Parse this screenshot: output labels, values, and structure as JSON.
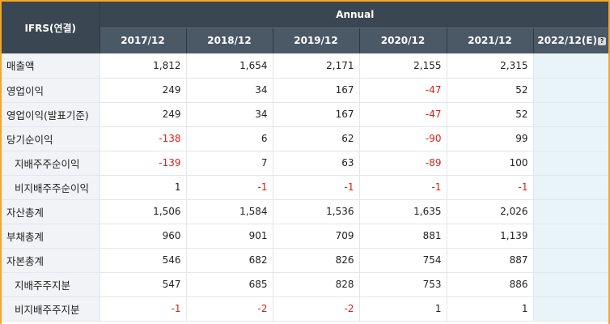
{
  "header": {
    "corner_label": "IFRS(연결)",
    "group_label": "Annual",
    "years": [
      "2017/12",
      "2018/12",
      "2019/12",
      "2020/12",
      "2021/12"
    ],
    "estimate_year": "2022/12(E)",
    "help_icon_glyph": "?"
  },
  "rows": [
    {
      "label": "매출액",
      "sub": false,
      "values": [
        "1,812",
        "1,654",
        "2,171",
        "2,155",
        "2,315"
      ],
      "estimate": ""
    },
    {
      "label": "영업이익",
      "sub": false,
      "values": [
        "249",
        "34",
        "167",
        "-47",
        "52"
      ],
      "estimate": ""
    },
    {
      "label": "영업이익(발표기준)",
      "sub": false,
      "values": [
        "249",
        "34",
        "167",
        "-47",
        "52"
      ],
      "estimate": ""
    },
    {
      "label": "당기순이익",
      "sub": false,
      "values": [
        "-138",
        "6",
        "62",
        "-90",
        "99"
      ],
      "estimate": ""
    },
    {
      "label": "지배주주순이익",
      "sub": true,
      "values": [
        "-139",
        "7",
        "63",
        "-89",
        "100"
      ],
      "estimate": ""
    },
    {
      "label": "비지배주주순이익",
      "sub": true,
      "values": [
        "1",
        "-1",
        "-1",
        "-1",
        "-1"
      ],
      "estimate": ""
    },
    {
      "label": "자산총계",
      "sub": false,
      "values": [
        "1,506",
        "1,584",
        "1,536",
        "1,635",
        "2,026"
      ],
      "estimate": ""
    },
    {
      "label": "부채총계",
      "sub": false,
      "values": [
        "960",
        "901",
        "709",
        "881",
        "1,139"
      ],
      "estimate": ""
    },
    {
      "label": "자본총계",
      "sub": false,
      "values": [
        "546",
        "682",
        "826",
        "754",
        "887"
      ],
      "estimate": ""
    },
    {
      "label": "지배주주지분",
      "sub": true,
      "values": [
        "547",
        "685",
        "828",
        "753",
        "886"
      ],
      "estimate": ""
    },
    {
      "label": "비지배주주지분",
      "sub": true,
      "values": [
        "-1",
        "-2",
        "-2",
        "1",
        "1"
      ],
      "estimate": ""
    }
  ],
  "colors": {
    "header_bg": "#3a4652",
    "year_header_bg": "#4b5866",
    "label_bg": "#f1f3f6",
    "estimate_bg": "#e8f4f8",
    "negative": "#d2221c",
    "frame_border": "#f5a623"
  }
}
